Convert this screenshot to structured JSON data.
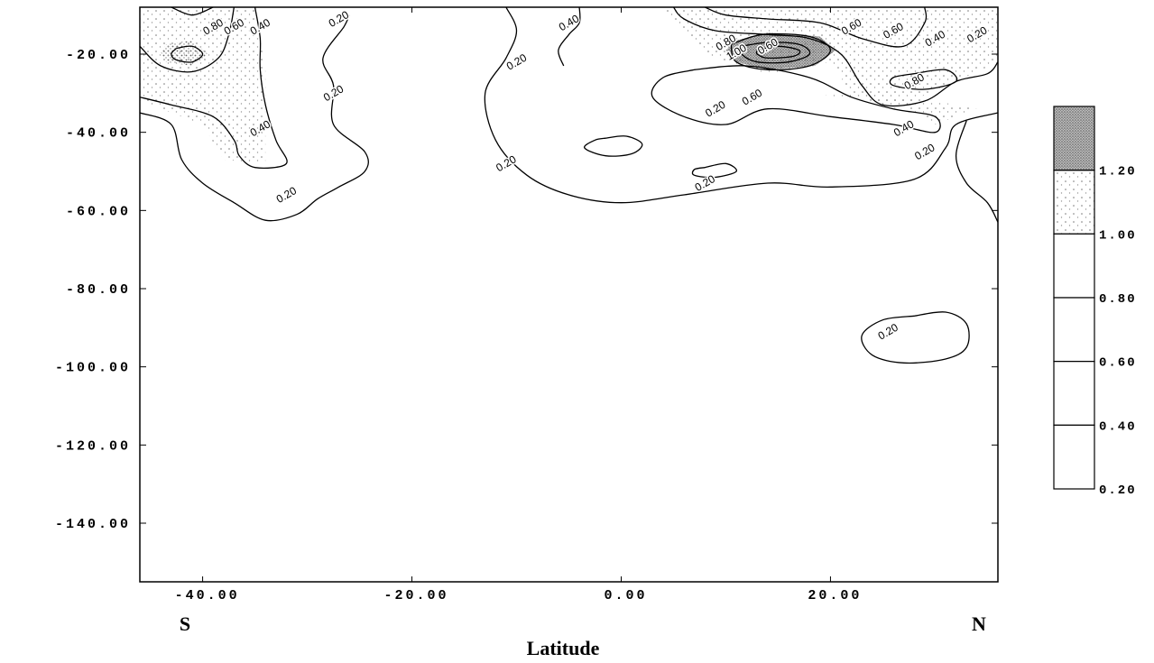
{
  "chart_data": {
    "type": "contour",
    "title": "",
    "xlabel": "Latitude",
    "ylabel": "",
    "x_end_labels": {
      "left": "S",
      "right": "N"
    },
    "xlim": [
      -46,
      36
    ],
    "ylim": [
      -155,
      -8
    ],
    "x_ticks": [
      {
        "value": -40,
        "label": "-40.00"
      },
      {
        "value": -20,
        "label": "-20.00"
      },
      {
        "value": 0,
        "label": "0.00"
      },
      {
        "value": 20,
        "label": "20.00"
      }
    ],
    "y_ticks": [
      {
        "value": -20,
        "label": "-20.00"
      },
      {
        "value": -40,
        "label": "-40.00"
      },
      {
        "value": -60,
        "label": "-60.00"
      },
      {
        "value": -80,
        "label": "-80.00"
      },
      {
        "value": -100,
        "label": "-100.00"
      },
      {
        "value": -120,
        "label": "-120.00"
      },
      {
        "value": -140,
        "label": "-140.00"
      }
    ],
    "legend": {
      "placement": "right",
      "levels": [
        "1.20",
        "1.00",
        "0.80",
        "0.60",
        "0.40",
        "0.20"
      ]
    },
    "contours": [
      {
        "level": 0.2,
        "points": [
          [
            -46,
            -35
          ],
          [
            -43,
            -38
          ],
          [
            -42,
            -47
          ],
          [
            -40,
            -53
          ],
          [
            -37,
            -58
          ],
          [
            -34,
            -62.5
          ],
          [
            -31,
            -61
          ],
          [
            -29,
            -57
          ],
          [
            -27,
            -54
          ],
          [
            -24.5,
            -50
          ],
          [
            -24.5,
            -45
          ],
          [
            -27.5,
            -38
          ],
          [
            -27.5,
            -28
          ],
          [
            -28.5,
            -21
          ],
          [
            -26.5,
            -13
          ],
          [
            -26,
            -10
          ]
        ]
      },
      {
        "level": 0.2,
        "points": [
          [
            -11,
            -8
          ],
          [
            -10,
            -14
          ],
          [
            -11,
            -21
          ],
          [
            -13,
            -30
          ],
          [
            -12,
            -42
          ],
          [
            -9,
            -51
          ],
          [
            -5,
            -56
          ],
          [
            0,
            -58
          ],
          [
            6,
            -56
          ],
          [
            14,
            -53
          ],
          [
            20,
            -54
          ],
          [
            28,
            -52
          ],
          [
            31,
            -44
          ],
          [
            32,
            -38
          ],
          [
            36,
            -35
          ]
        ]
      },
      {
        "level": 0.2,
        "points": [
          [
            33,
            -37
          ],
          [
            32,
            -46
          ],
          [
            33,
            -53
          ],
          [
            35,
            -58
          ],
          [
            36,
            -63
          ]
        ]
      },
      {
        "level": 0.2,
        "points": [
          [
            28,
            -87
          ],
          [
            31,
            -86
          ],
          [
            33,
            -89
          ],
          [
            33,
            -95
          ],
          [
            31,
            -98
          ],
          [
            27,
            -99
          ],
          [
            24,
            -97
          ],
          [
            23,
            -92
          ],
          [
            25,
            -88
          ],
          [
            28,
            -87
          ]
        ]
      },
      {
        "level": 0.2,
        "points": [
          [
            7,
            -24
          ],
          [
            12,
            -23
          ],
          [
            18,
            -26
          ],
          [
            22,
            -31
          ],
          [
            26,
            -34
          ],
          [
            30,
            -36
          ],
          [
            30,
            -40
          ],
          [
            26,
            -38
          ],
          [
            20,
            -36
          ],
          [
            14,
            -34
          ],
          [
            10,
            -38
          ],
          [
            6,
            -36
          ],
          [
            3,
            -31
          ],
          [
            4,
            -26
          ],
          [
            7,
            -24
          ]
        ]
      },
      {
        "level": 0.2,
        "points": [
          [
            -1.5,
            -41.5
          ],
          [
            0.5,
            -41
          ],
          [
            2,
            -43
          ],
          [
            1,
            -45.5
          ],
          [
            -1.5,
            -46
          ],
          [
            -3.5,
            -44
          ],
          [
            -2.5,
            -42
          ],
          [
            -1.5,
            -41.5
          ]
        ]
      },
      {
        "level": 0.2,
        "points": [
          [
            8,
            -49
          ],
          [
            10,
            -48
          ],
          [
            11,
            -50
          ],
          [
            9,
            -51.5
          ],
          [
            7,
            -51
          ],
          [
            7,
            -49.5
          ],
          [
            8,
            -49
          ]
        ]
      },
      {
        "level": 0.4,
        "points": [
          [
            -46,
            -31
          ],
          [
            -43,
            -33
          ],
          [
            -39,
            -36
          ],
          [
            -37,
            -42
          ],
          [
            -36.5,
            -46
          ],
          [
            -35,
            -49
          ],
          [
            -32,
            -48
          ],
          [
            -33,
            -42
          ],
          [
            -34,
            -33
          ],
          [
            -34.5,
            -24
          ],
          [
            -34.5,
            -16
          ],
          [
            -35,
            -8
          ]
        ]
      },
      {
        "level": 0.4,
        "points": [
          [
            -4,
            -8
          ],
          [
            -4,
            -12
          ],
          [
            -5,
            -15
          ],
          [
            -6,
            -19
          ],
          [
            -5.5,
            -23
          ]
        ]
      },
      {
        "level": 0.4,
        "points": [
          [
            5,
            -8
          ],
          [
            6,
            -11
          ],
          [
            9,
            -14
          ],
          [
            14,
            -15
          ],
          [
            18,
            -16
          ],
          [
            21,
            -20
          ],
          [
            23,
            -28
          ],
          [
            25,
            -33
          ],
          [
            29,
            -32
          ],
          [
            32,
            -27
          ],
          [
            35,
            -25
          ],
          [
            36,
            -22
          ]
        ]
      },
      {
        "level": 0.6,
        "points": [
          [
            -46,
            -18
          ],
          [
            -44,
            -23
          ],
          [
            -41,
            -24.5
          ],
          [
            -38.5,
            -21
          ],
          [
            -37.5,
            -15
          ],
          [
            -37,
            -8
          ]
        ]
      },
      {
        "level": 0.6,
        "points": [
          [
            -43,
            -8
          ],
          [
            -41,
            -10
          ],
          [
            -39,
            -8
          ]
        ]
      },
      {
        "level": 0.6,
        "points": [
          [
            8,
            -8
          ],
          [
            10,
            -10
          ],
          [
            14,
            -11
          ],
          [
            19,
            -12
          ],
          [
            23,
            -16
          ],
          [
            27,
            -18
          ],
          [
            29,
            -12
          ],
          [
            29,
            -8
          ]
        ]
      },
      {
        "level": 0.6,
        "points": [
          [
            28,
            -25
          ],
          [
            31,
            -24
          ],
          [
            32,
            -27
          ],
          [
            29,
            -29
          ],
          [
            26,
            -28
          ],
          [
            26,
            -26
          ],
          [
            28,
            -25
          ]
        ]
      },
      {
        "level": 0.8,
        "points": [
          [
            10.5,
            -17.5
          ],
          [
            13.5,
            -15
          ],
          [
            18,
            -15.5
          ],
          [
            20,
            -19
          ],
          [
            18,
            -23
          ],
          [
            14,
            -24
          ],
          [
            11,
            -22
          ],
          [
            10.5,
            -17.5
          ]
        ]
      },
      {
        "level": 1.0,
        "points": [
          [
            11.5,
            -18
          ],
          [
            14,
            -17
          ],
          [
            17,
            -17.5
          ],
          [
            18,
            -20
          ],
          [
            16,
            -22
          ],
          [
            13,
            -22
          ],
          [
            11.5,
            -20
          ],
          [
            11.5,
            -18
          ]
        ]
      },
      {
        "level": 1.2,
        "points": [
          [
            13,
            -19
          ],
          [
            15,
            -18
          ],
          [
            17,
            -19
          ],
          [
            16.5,
            -20.5
          ],
          [
            14,
            -21
          ],
          [
            13,
            -20
          ],
          [
            13,
            -19
          ]
        ]
      },
      {
        "level": 1.0,
        "points": [
          [
            -42.5,
            -18.5
          ],
          [
            -41,
            -18
          ],
          [
            -40,
            -20
          ],
          [
            -41,
            -22
          ],
          [
            -42.5,
            -21.5
          ],
          [
            -43,
            -20
          ],
          [
            -42.5,
            -18.5
          ]
        ]
      }
    ],
    "contour_labels": [
      {
        "text": "0.20",
        "x": -32,
        "y": -56
      },
      {
        "text": "0.20",
        "x": -27,
        "y": -11
      },
      {
        "text": "0.20",
        "x": -27.5,
        "y": -30
      },
      {
        "text": "0.40",
        "x": -34.5,
        "y": -39
      },
      {
        "text": "0.40",
        "x": -34.5,
        "y": -13
      },
      {
        "text": "0.60",
        "x": -37,
        "y": -13
      },
      {
        "text": "0.80",
        "x": -39,
        "y": -13
      },
      {
        "text": "0.20",
        "x": -10,
        "y": -22
      },
      {
        "text": "0.20",
        "x": -11,
        "y": -48
      },
      {
        "text": "0.40",
        "x": -5,
        "y": -12
      },
      {
        "text": "0.20",
        "x": 8,
        "y": -53
      },
      {
        "text": "0.20",
        "x": 9,
        "y": -34
      },
      {
        "text": "0.20",
        "x": 29,
        "y": -45
      },
      {
        "text": "0.40",
        "x": 27,
        "y": -39
      },
      {
        "text": "0.40",
        "x": 30,
        "y": -16
      },
      {
        "text": "0.20",
        "x": 34,
        "y": -15
      },
      {
        "text": "0.60",
        "x": 22,
        "y": -13
      },
      {
        "text": "0.60",
        "x": 26,
        "y": -14
      },
      {
        "text": "0.80",
        "x": 28,
        "y": -27
      },
      {
        "text": "0.60",
        "x": 12.5,
        "y": -31
      },
      {
        "text": "0.60",
        "x": 14,
        "y": -18
      },
      {
        "text": "0.80",
        "x": 10,
        "y": -17
      },
      {
        "text": "1.00",
        "x": 11,
        "y": -19.5
      },
      {
        "text": "0.20",
        "x": 25.5,
        "y": -91
      }
    ],
    "shaded_regions": [
      {
        "level": 1.2,
        "points": [
          [
            11,
            -16.5
          ],
          [
            14,
            -14.5
          ],
          [
            19,
            -15.5
          ],
          [
            20.5,
            -19
          ],
          [
            18.5,
            -23
          ],
          [
            14,
            -24
          ],
          [
            11,
            -22
          ],
          [
            10,
            -19
          ],
          [
            11,
            -16.5
          ]
        ]
      },
      {
        "level": 1.0,
        "points": [
          [
            -43.5,
            -17.5
          ],
          [
            -41,
            -16.5
          ],
          [
            -39.5,
            -20
          ],
          [
            -41,
            -23
          ],
          [
            -43.5,
            -22
          ],
          [
            -44,
            -19.5
          ],
          [
            -43.5,
            -17.5
          ]
        ]
      },
      {
        "level": 0.8,
        "points": [
          [
            -46,
            -8
          ],
          [
            -35,
            -8
          ],
          [
            -34,
            -24
          ],
          [
            -34,
            -40
          ],
          [
            -34,
            -48
          ],
          [
            -38,
            -47
          ],
          [
            -40,
            -38
          ],
          [
            -46,
            -32
          ]
        ]
      },
      {
        "level": 0.8,
        "points": [
          [
            4,
            -8
          ],
          [
            36,
            -8
          ],
          [
            36,
            -22
          ],
          [
            32,
            -27
          ],
          [
            26,
            -34
          ],
          [
            22,
            -30
          ],
          [
            20,
            -22
          ],
          [
            14,
            -25
          ],
          [
            8,
            -20
          ],
          [
            5,
            -12
          ]
        ]
      },
      {
        "level": 0.6,
        "points": [
          [
            18,
            -30
          ],
          [
            27,
            -33
          ],
          [
            30,
            -38
          ],
          [
            34,
            -34
          ],
          [
            30,
            -32
          ],
          [
            24,
            -30
          ]
        ]
      }
    ]
  }
}
